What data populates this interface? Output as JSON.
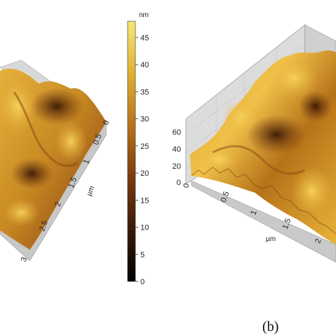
{
  "figure": {
    "panel_b_label": "(b)"
  },
  "colorbar": {
    "unit": "nm",
    "ticks": [
      "45",
      "40",
      "35",
      "30",
      "25",
      "20",
      "15",
      "10",
      "5",
      "0"
    ],
    "range": [
      0,
      48
    ],
    "colormap": [
      "#000000",
      "#3a1a08",
      "#7a3a0e",
      "#b8741a",
      "#e0b032",
      "#f6e778"
    ]
  },
  "panel_a": {
    "axis_unit": "µm",
    "axis_ticks": [
      "0",
      "0.5",
      "1",
      "1.5",
      "2",
      "2.5",
      "3"
    ]
  },
  "panel_b": {
    "z_ticks": [
      "60",
      "40",
      "20",
      "0"
    ],
    "x_ticks": [
      "0",
      "0.5",
      "1",
      "1.5",
      "2"
    ],
    "x_unit": "µm"
  }
}
